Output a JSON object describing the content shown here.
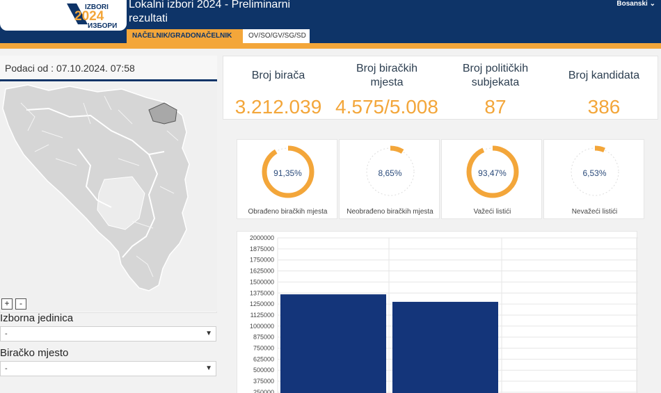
{
  "header": {
    "title_line1": "Lokalni izbori 2024 - Preliminarni",
    "title_line2": "rezultati",
    "logo_text_top": "IZBORI",
    "logo_year": "2024",
    "logo_text_bottom": "ИЗБОРИ",
    "tabs": [
      {
        "label": "NAČELNIK/GRADONAČELNIK",
        "active": true
      },
      {
        "label": "OV/SO/GV/SG/SD",
        "active": false
      }
    ],
    "language": "Bosanski",
    "colors": {
      "primary": "#0e3468",
      "accent": "#f3a63a"
    }
  },
  "left": {
    "date_label": "Podaci od : 07.10.2024. 07:58",
    "zoom_in": "+",
    "zoom_out": "-",
    "unit_label": "Izborna jedinica",
    "unit_value": "-",
    "station_label": "Biračko mjesto",
    "station_value": "-"
  },
  "stats": [
    {
      "label_1": "Broj birača",
      "label_2": "",
      "value": "3.212.039"
    },
    {
      "label_1": "Broj biračkih",
      "label_2": "mjesta",
      "value": "4.575/5.008"
    },
    {
      "label_1": "Broj političkih",
      "label_2": "subjekata",
      "value": "87"
    },
    {
      "label_1": "Broj kandidata",
      "label_2": "",
      "value": "386"
    }
  ],
  "gauges": [
    {
      "percent_text": "91,35%",
      "fraction": 0.9135,
      "label": "Obrađeno biračkih mjesta"
    },
    {
      "percent_text": "8,65%",
      "fraction": 0.0865,
      "label": "Neobrađeno biračkih mjesta"
    },
    {
      "percent_text": "93,47%",
      "fraction": 0.9347,
      "label": "Važeći listići"
    },
    {
      "percent_text": "6,53%",
      "fraction": 0.0653,
      "label": "Nevažeći listići"
    }
  ],
  "chart_data": {
    "type": "bar",
    "categories": [
      "",
      ""
    ],
    "values": [
      1360000,
      1275000
    ],
    "ylim": [
      250000,
      2000000
    ],
    "yticks": [
      2000000,
      1875000,
      1750000,
      1625000,
      1500000,
      1375000,
      1250000,
      1125000,
      1000000,
      875000,
      750000,
      625000,
      500000,
      375000,
      250000
    ],
    "bar_color": "#14357a",
    "grid": true
  }
}
